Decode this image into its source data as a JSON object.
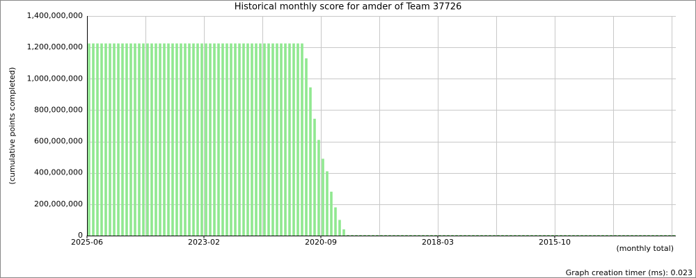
{
  "chart_data": {
    "type": "bar",
    "title": "Historical monthly score for amder of Team 37726",
    "y_label": "(cumulative points completed)",
    "x_label": "(monthly total)",
    "footer": "Graph creation timer (ms): 0.023",
    "color": "#90e890",
    "grid": true,
    "ylim": [
      0,
      1400000000
    ],
    "yticks": [
      0,
      {
        "value": 200000000,
        "label": "200,000,000"
      },
      {
        "value": 400000000,
        "label": "400,000,000"
      },
      {
        "value": 600000000,
        "label": "600,000,000"
      },
      {
        "value": 800000000,
        "label": "800,000,000"
      },
      {
        "value": 1000000000,
        "label": "1,000,000,000"
      },
      {
        "value": 1200000000,
        "label": "1,200,000,000"
      },
      {
        "value": 1400000000,
        "label": "1,400,000,000"
      }
    ],
    "categories": [
      "2025-06",
      null,
      null,
      null,
      null,
      null,
      null,
      null,
      null,
      null,
      null,
      null,
      null,
      null,
      null,
      null,
      null,
      null,
      null,
      null,
      null,
      null,
      null,
      null,
      null,
      null,
      null,
      null,
      "2023-02",
      null,
      null,
      null,
      null,
      null,
      null,
      null,
      null,
      null,
      null,
      null,
      null,
      null,
      null,
      null,
      null,
      null,
      null,
      null,
      null,
      null,
      null,
      null,
      null,
      null,
      null,
      null,
      "2020-09",
      null,
      null,
      null,
      null,
      null,
      null,
      null,
      null,
      null,
      null,
      null,
      null,
      null,
      null,
      null,
      null,
      null,
      null,
      null,
      null,
      null,
      null,
      null,
      null,
      null,
      null,
      null,
      "2018-03",
      null,
      null,
      null,
      null,
      null,
      null,
      null,
      null,
      null,
      null,
      null,
      null,
      null,
      null,
      null,
      null,
      null,
      null,
      null,
      null,
      null,
      null,
      null,
      null,
      null,
      null,
      null,
      "2015-10",
      null,
      null,
      null,
      null,
      null,
      null,
      null,
      null,
      null,
      null,
      null,
      null,
      null,
      null,
      null,
      null,
      null,
      null,
      null,
      null,
      null,
      null,
      null,
      null,
      null,
      null,
      null,
      null
    ],
    "values": [
      1225000000,
      1225000000,
      1225000000,
      1225000000,
      1225000000,
      1225000000,
      1225000000,
      1225000000,
      1225000000,
      1225000000,
      1225000000,
      1225000000,
      1225000000,
      1225000000,
      1225000000,
      1225000000,
      1225000000,
      1225000000,
      1225000000,
      1225000000,
      1225000000,
      1225000000,
      1225000000,
      1225000000,
      1225000000,
      1225000000,
      1225000000,
      1225000000,
      1225000000,
      1225000000,
      1225000000,
      1225000000,
      1225000000,
      1225000000,
      1225000000,
      1225000000,
      1225000000,
      1225000000,
      1225000000,
      1225000000,
      1225000000,
      1225000000,
      1225000000,
      1225000000,
      1225000000,
      1225000000,
      1225000000,
      1225000000,
      1225000000,
      1225000000,
      1225000000,
      1225000000,
      1130000000,
      945000000,
      745000000,
      610000000,
      490000000,
      410000000,
      280000000,
      180000000,
      100000000,
      40000000,
      0,
      0,
      0,
      0,
      0,
      0,
      0,
      0,
      0,
      0,
      0,
      0,
      0,
      0,
      0,
      0,
      0,
      0,
      0,
      0,
      0,
      0,
      0,
      0,
      0,
      0,
      0,
      0,
      0,
      0,
      0,
      0,
      0,
      0,
      0,
      0,
      0,
      0,
      0,
      0,
      0,
      0,
      0,
      0,
      0,
      0,
      0,
      0,
      0,
      0,
      0,
      0,
      0,
      0,
      0,
      0,
      0,
      0,
      0,
      0,
      0,
      0,
      0,
      0,
      0,
      0,
      0,
      0,
      0,
      0,
      0,
      0,
      0,
      0,
      0,
      0,
      0,
      0,
      0
    ]
  }
}
